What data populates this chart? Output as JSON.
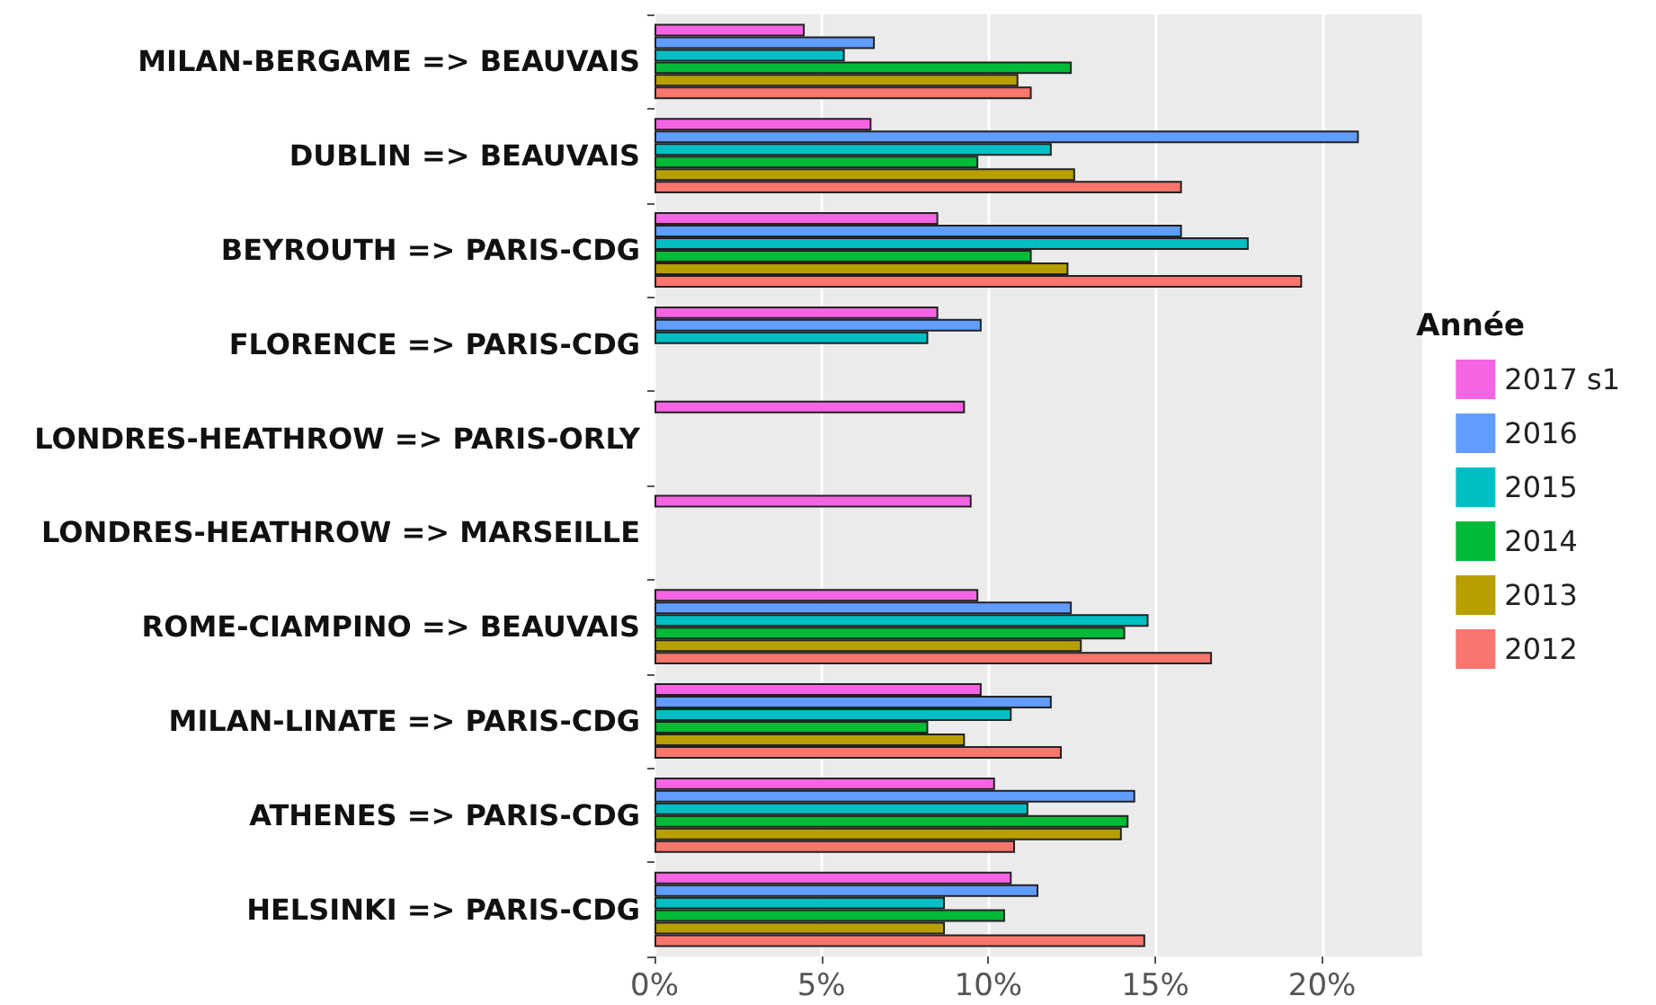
{
  "chart_data": {
    "type": "bar",
    "orientation": "horizontal",
    "legend_title": "Année",
    "legend": "right",
    "grid": "x",
    "categories": [
      "MILAN-BERGAME => BEAUVAIS",
      "DUBLIN => BEAUVAIS",
      "BEYROUTH => PARIS-CDG",
      "FLORENCE => PARIS-CDG",
      "LONDRES-HEATHROW => PARIS-ORLY",
      "LONDRES-HEATHROW => MARSEILLE",
      "ROME-CIAMPINO => BEAUVAIS",
      "MILAN-LINATE => PARIS-CDG",
      "ATHENES => PARIS-CDG",
      "HELSINKI => PARIS-CDG"
    ],
    "xlim": [
      0,
      23
    ],
    "xticks": [
      {
        "value": 0,
        "label": "0%"
      },
      {
        "value": 5,
        "label": "5%"
      },
      {
        "value": 10,
        "label": "10%"
      },
      {
        "value": 15,
        "label": "15%"
      },
      {
        "value": 20,
        "label": "20%"
      }
    ],
    "series": [
      {
        "name": "2017 s1",
        "color": "#f564e3",
        "values": [
          4.5,
          6.5,
          8.5,
          8.5,
          9.3,
          9.5,
          9.7,
          9.8,
          10.2,
          10.7
        ]
      },
      {
        "name": "2016",
        "color": "#619cff",
        "values": [
          6.6,
          21.1,
          15.8,
          9.8,
          null,
          null,
          12.5,
          11.9,
          14.4,
          11.5
        ]
      },
      {
        "name": "2015",
        "color": "#00bfc4",
        "values": [
          5.7,
          11.9,
          17.8,
          8.2,
          null,
          null,
          14.8,
          10.7,
          11.2,
          8.7
        ]
      },
      {
        "name": "2014",
        "color": "#00ba38",
        "values": [
          12.5,
          9.7,
          11.3,
          null,
          null,
          null,
          14.1,
          8.2,
          14.2,
          10.5
        ]
      },
      {
        "name": "2013",
        "color": "#b79f00",
        "values": [
          10.9,
          12.6,
          12.4,
          null,
          null,
          null,
          12.8,
          9.3,
          14.0,
          8.7
        ]
      },
      {
        "name": "2012",
        "color": "#f8766d",
        "values": [
          11.3,
          15.8,
          19.4,
          null,
          null,
          null,
          16.7,
          12.2,
          10.8,
          14.7
        ]
      }
    ]
  }
}
